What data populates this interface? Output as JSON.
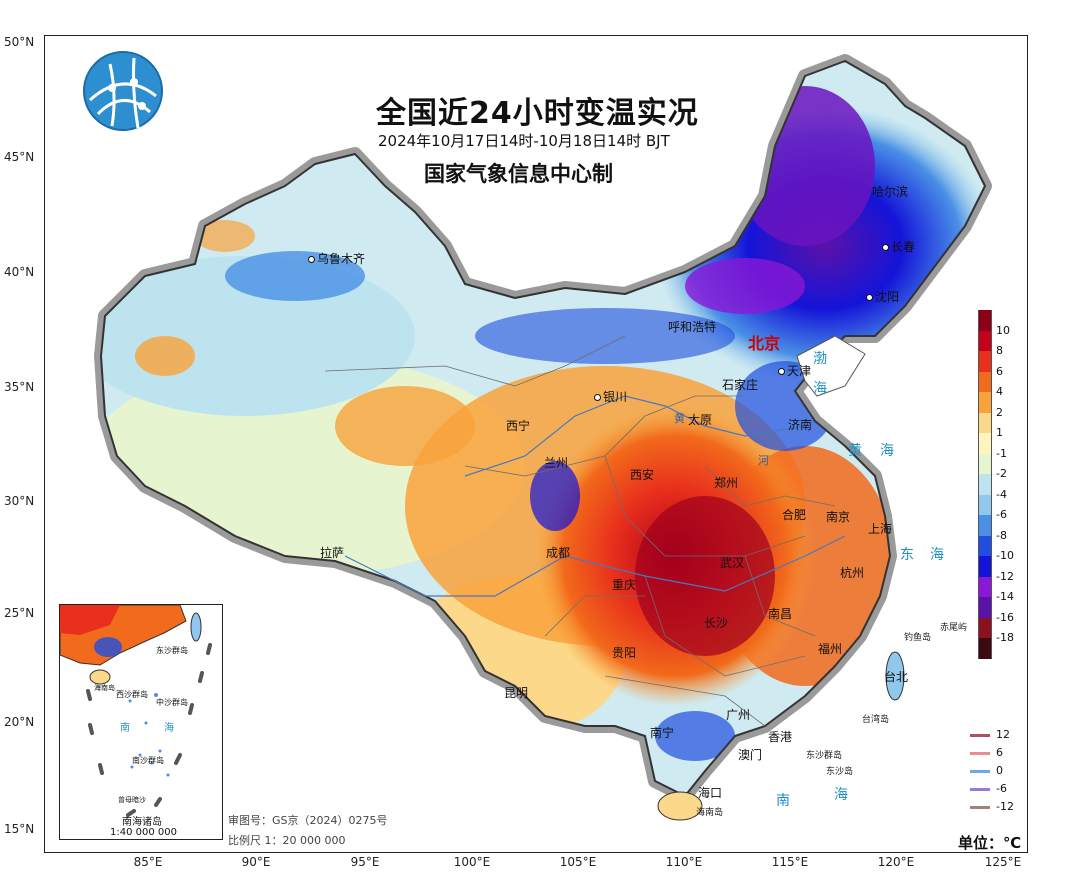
{
  "map": {
    "title": "全国近24小时变温实况",
    "time_range": "2024年10月17日14时-10月18日14时 BJT",
    "producer": "国家气象信息中心制",
    "latitude_labels": [
      "50°N",
      "45°N",
      "40°N",
      "35°N",
      "30°N",
      "25°N",
      "20°N",
      "15°N"
    ],
    "longitude_labels": [
      "85°E",
      "90°E",
      "95°E",
      "100°E",
      "105°E",
      "110°E",
      "115°E",
      "120°E",
      "125°E"
    ],
    "capital": "北京",
    "cities": [
      "乌鲁木齐",
      "哈尔滨",
      "长春",
      "沈阳",
      "呼和浩特",
      "天津",
      "石家庄",
      "银川",
      "太原",
      "济南",
      "西宁",
      "兰州",
      "西安",
      "郑州",
      "合肥",
      "南京",
      "上海",
      "拉萨",
      "成都",
      "武汉",
      "杭州",
      "重庆",
      "长沙",
      "南昌",
      "贵阳",
      "福州",
      "台北",
      "昆明",
      "南宁",
      "广州",
      "香港",
      "澳门",
      "海口"
    ],
    "small_labels": [
      "钓鱼岛",
      "赤尾屿",
      "台湾岛",
      "东沙群岛",
      "东沙岛",
      "海南岛"
    ],
    "seas": [
      "渤",
      "海",
      "黄",
      "海",
      "东",
      "海",
      "南",
      "海"
    ],
    "rivers": [
      "黄",
      "河"
    ],
    "approval": "审图号：GS京（2024）0275号",
    "scale": "比例尺 1：20 000 000",
    "unit": "单位：℃",
    "inset": {
      "title": "南海诸岛",
      "scale": "1:40 000 000",
      "labels": [
        "东沙群岛",
        "西沙群岛",
        "中沙群岛",
        "南",
        "海",
        "南沙群岛",
        "曾母暗沙",
        "海南岛"
      ]
    }
  },
  "legend": {
    "labels": [
      "10",
      "8",
      "6",
      "4",
      "2",
      "1",
      "-1",
      "-2",
      "-4",
      "-6",
      "-8",
      "-10",
      "-12",
      "-14",
      "-16",
      "-18"
    ],
    "colors": [
      "#8b0016",
      "#c4001a",
      "#e8301c",
      "#f26a1b",
      "#f9a23b",
      "#fcd98a",
      "#fdf5c0",
      "#e6f5cf",
      "#bde4ee",
      "#8fc8ec",
      "#4a90e6",
      "#1e4fe0",
      "#1414d8",
      "#8a18d6",
      "#5b12a8",
      "#8b1020",
      "#3b0a10"
    ],
    "contours": [
      {
        "label": "12",
        "color": "#b05060"
      },
      {
        "label": "6",
        "color": "#ef8a8a"
      },
      {
        "label": "0",
        "color": "#6aa8e8"
      },
      {
        "label": "-6",
        "color": "#9a7ad0"
      },
      {
        "label": "-12",
        "color": "#a08080"
      }
    ]
  }
}
